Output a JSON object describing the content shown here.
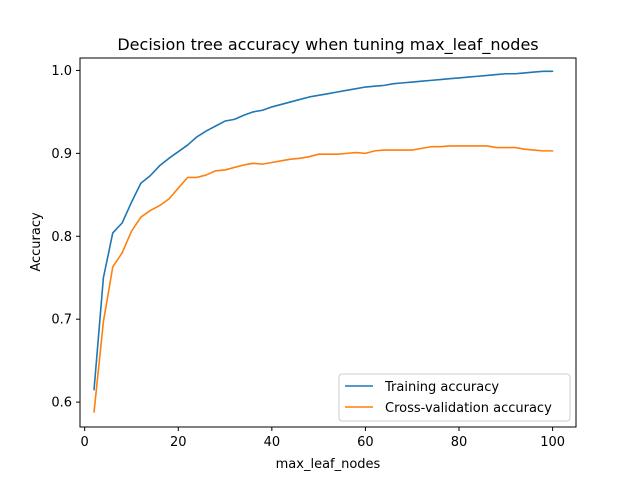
{
  "chart_data": {
    "type": "line",
    "title": "Decision tree accuracy when tuning max_leaf_nodes",
    "xlabel": "max_leaf_nodes",
    "ylabel": "Accuracy",
    "xlim": [
      -1,
      105
    ],
    "ylim": [
      0.57,
      1.015
    ],
    "xticks": [
      0,
      20,
      40,
      60,
      80,
      100
    ],
    "yticks": [
      0.6,
      0.7,
      0.8,
      0.9,
      1.0
    ],
    "xtick_labels": [
      "0",
      "20",
      "40",
      "60",
      "80",
      "100"
    ],
    "ytick_labels": [
      "0.6",
      "0.7",
      "0.8",
      "0.9",
      "1.0"
    ],
    "grid": false,
    "legend_position": "bottom-right",
    "x": [
      2,
      4,
      6,
      8,
      10,
      12,
      14,
      16,
      18,
      20,
      22,
      24,
      26,
      28,
      30,
      32,
      34,
      36,
      38,
      40,
      42,
      44,
      46,
      48,
      50,
      52,
      54,
      56,
      58,
      60,
      62,
      64,
      66,
      68,
      70,
      72,
      74,
      76,
      78,
      80,
      82,
      84,
      86,
      88,
      90,
      92,
      94,
      96,
      98,
      100
    ],
    "series": [
      {
        "name": "Training accuracy",
        "color": "#1f77b4",
        "values": [
          0.615,
          0.75,
          0.804,
          0.816,
          0.841,
          0.864,
          0.873,
          0.885,
          0.894,
          0.902,
          0.91,
          0.92,
          0.927,
          0.933,
          0.939,
          0.941,
          0.946,
          0.95,
          0.952,
          0.956,
          0.959,
          0.962,
          0.965,
          0.968,
          0.97,
          0.972,
          0.974,
          0.976,
          0.978,
          0.98,
          0.981,
          0.982,
          0.984,
          0.985,
          0.986,
          0.987,
          0.988,
          0.989,
          0.99,
          0.991,
          0.992,
          0.993,
          0.994,
          0.995,
          0.996,
          0.996,
          0.997,
          0.998,
          0.999,
          0.999
        ]
      },
      {
        "name": "Cross-validation accuracy",
        "color": "#ff7f0e",
        "values": [
          0.588,
          0.697,
          0.763,
          0.78,
          0.806,
          0.823,
          0.831,
          0.837,
          0.845,
          0.858,
          0.871,
          0.871,
          0.874,
          0.879,
          0.88,
          0.883,
          0.886,
          0.888,
          0.887,
          0.889,
          0.891,
          0.893,
          0.894,
          0.896,
          0.899,
          0.899,
          0.899,
          0.9,
          0.901,
          0.9,
          0.903,
          0.904,
          0.904,
          0.904,
          0.904,
          0.906,
          0.908,
          0.908,
          0.909,
          0.909,
          0.909,
          0.909,
          0.909,
          0.907,
          0.907,
          0.907,
          0.905,
          0.904,
          0.903,
          0.903
        ]
      }
    ]
  }
}
